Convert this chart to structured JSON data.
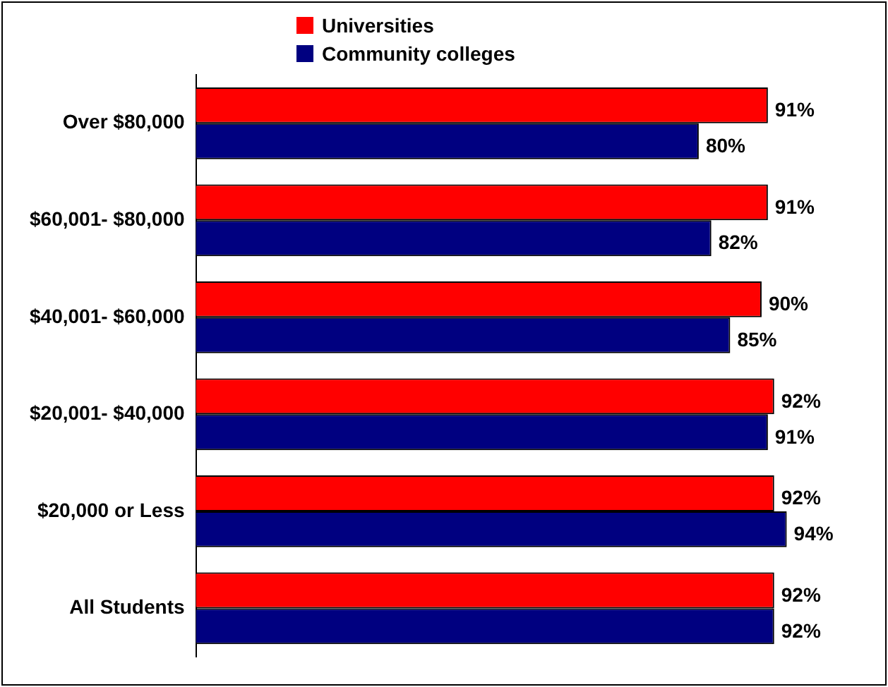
{
  "chart_data": {
    "type": "bar",
    "orientation": "horizontal",
    "categories": [
      "Over $80,000",
      "$60,001- $80,000",
      "$40,001- $60,000",
      "$20,001- $40,000",
      "$20,000 or Less",
      "All Students"
    ],
    "series": [
      {
        "name": "Universities",
        "color": "#ff0000",
        "values": [
          91,
          91,
          90,
          92,
          92,
          92
        ],
        "value_labels": [
          "91%",
          "91%",
          "90%",
          "92%",
          "92%",
          "92%"
        ]
      },
      {
        "name": "Community colleges",
        "color": "#000080",
        "values": [
          80,
          82,
          85,
          91,
          94,
          92
        ],
        "value_labels": [
          "80%",
          "82%",
          "85%",
          "91%",
          "94%",
          "92%"
        ]
      }
    ],
    "legend": "top",
    "tick_labels": "y"
  }
}
